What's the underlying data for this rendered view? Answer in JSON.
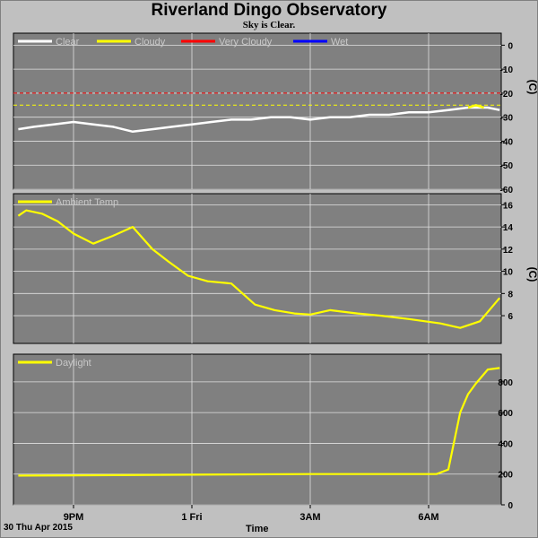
{
  "title": "Riverland Dingo Observatory",
  "subtitle": "Sky is Clear.",
  "footer": {
    "date_label": "30 Thu Apr 2015",
    "xlabel": "Time"
  },
  "colors": {
    "panel_bg": "#808080",
    "grid": "#e0e0e0",
    "clear": "#ffffff",
    "cloudy": "#ffff00",
    "very_cloudy": "#ff0000",
    "wet": "#0000ff",
    "series": "#ffff00"
  },
  "x_ticks": [
    {
      "label": "9PM",
      "hours": 0
    },
    {
      "label": "1 Fri",
      "hours": 3
    },
    {
      "label": "3AM",
      "hours": 6
    },
    {
      "label": "6AM",
      "hours": 9
    }
  ],
  "chart_data": [
    {
      "type": "line",
      "ylabel": "(C)",
      "ylim": [
        -60,
        5
      ],
      "yticks": [
        0,
        -10,
        -20,
        -30,
        -40,
        -50,
        -60
      ],
      "legend": [
        "Clear",
        "Cloudy",
        "Very Cloudy",
        "Wet"
      ],
      "thresholds": [
        {
          "name": "Very Cloudy",
          "value": -20,
          "color": "#ff0000"
        },
        {
          "name": "Cloudy",
          "value": -25,
          "color": "#ffff00"
        }
      ],
      "series": [
        {
          "name": "Clear",
          "x": [
            -1.4,
            -1.0,
            -0.5,
            0.0,
            0.5,
            1.0,
            1.5,
            2.0,
            2.5,
            3.0,
            3.5,
            4.0,
            4.5,
            5.0,
            5.5,
            6.0,
            6.5,
            7.0,
            7.5,
            8.0,
            8.5,
            9.0,
            9.5,
            10.0,
            10.5,
            10.8
          ],
          "values": [
            -35,
            -34,
            -33,
            -32,
            -33,
            -34,
            -36,
            -35,
            -34,
            -33,
            -32,
            -31,
            -31,
            -30,
            -30,
            -31,
            -30,
            -30,
            -29,
            -29,
            -28,
            -28,
            -27,
            -26,
            -26,
            -27
          ]
        },
        {
          "name": "Cloudy",
          "x": [
            10.0,
            10.2,
            10.4
          ],
          "values": [
            -26,
            -25,
            -26
          ]
        }
      ]
    },
    {
      "type": "line",
      "ylabel": "(C)",
      "ylim": [
        3.5,
        17
      ],
      "yticks": [
        16,
        14,
        12,
        10,
        8,
        6
      ],
      "legend": [
        "Ambient Temp"
      ],
      "series": [
        {
          "name": "Ambient Temp",
          "x": [
            -1.4,
            -1.2,
            -0.8,
            -0.4,
            0.0,
            0.5,
            1.0,
            1.5,
            2.0,
            2.4,
            2.9,
            3.4,
            4.0,
            4.6,
            5.1,
            5.6,
            6.0,
            6.5,
            7.2,
            7.8,
            8.5,
            9.3,
            9.8,
            10.3,
            10.8
          ],
          "values": [
            15.0,
            15.5,
            15.2,
            14.5,
            13.4,
            12.5,
            13.2,
            14.0,
            12.0,
            10.9,
            9.6,
            9.1,
            8.9,
            7.0,
            6.5,
            6.2,
            6.1,
            6.5,
            6.2,
            6.0,
            5.7,
            5.3,
            4.9,
            5.5,
            7.6
          ]
        }
      ]
    },
    {
      "type": "line",
      "ylabel": "",
      "ylim": [
        0,
        980
      ],
      "yticks": [
        800,
        600,
        400,
        200,
        0
      ],
      "legend": [
        "Daylight"
      ],
      "series": [
        {
          "name": "Daylight",
          "x": [
            -1.4,
            0.0,
            2.0,
            4.0,
            6.0,
            8.0,
            9.2,
            9.5,
            9.8,
            10.0,
            10.2,
            10.5,
            10.8
          ],
          "values": [
            190,
            192,
            195,
            198,
            200,
            200,
            200,
            230,
            600,
            720,
            790,
            880,
            890
          ]
        }
      ]
    }
  ]
}
